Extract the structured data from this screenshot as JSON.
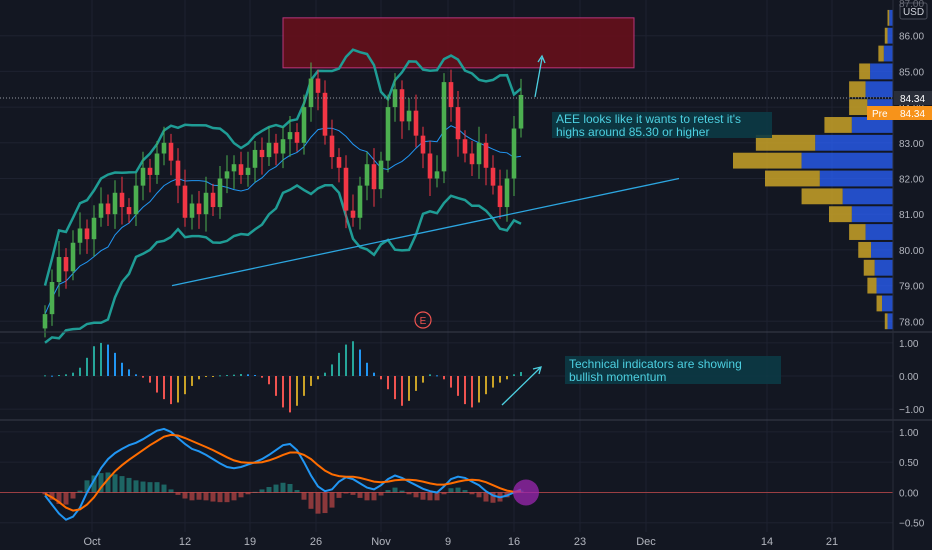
{
  "colors": {
    "background": "#131722",
    "grid": "#1e2230",
    "axis_text": "#b2b5be",
    "bull": "#26a69a",
    "bull_candle": "#4caf50",
    "bear": "#ef5350",
    "bear_candle": "#f23645",
    "band": "#1f9c95",
    "basis": "#2196f3",
    "trendline": "#2ca6e0",
    "zone_fill": "#6b0f1a",
    "zone_border": "#d83a8a",
    "vp_up": "#2962ff",
    "vp_down": "#c9a227",
    "macd_line": "#2196f3",
    "signal_line": "#ff6d00",
    "annotation_bg": "#0c3a45",
    "annotation_text": "#4dd0e1",
    "pre_badge": "#f7931a",
    "last_badge": "#2a2e39"
  },
  "symbol": {
    "currency": "USD",
    "last_price": "84.34",
    "pre_label": "Pre",
    "pre_price": "84.34",
    "top_tick": "87.00"
  },
  "annotations": {
    "price_note_line1": "AEE looks like it wants to retest it's",
    "price_note_line2": "highs around 85.30 or higher",
    "momentum_note_line1": "Technical indicators are showing",
    "momentum_note_line2": "bullish momentum",
    "earnings_marker": "E"
  },
  "chart_data": [
    {
      "type": "candlestick",
      "title": "",
      "x_labels": [
        "Oct",
        "12",
        "19",
        "26",
        "Nov",
        "9",
        "16",
        "23",
        "Dec",
        "14",
        "21"
      ],
      "y_ticks": [
        "86.00",
        "85.00",
        "84.00",
        "83.00",
        "82.00",
        "81.00",
        "80.00",
        "79.00",
        "78.00"
      ],
      "ylim": [
        77.7,
        87.0
      ],
      "resistance_zone": [
        85.1,
        86.5
      ],
      "support_trendline": {
        "start": 79.0,
        "end": 82.0
      },
      "closes": [
        78.2,
        79.1,
        79.8,
        79.4,
        80.2,
        80.6,
        80.3,
        80.9,
        81.3,
        81.0,
        81.6,
        81.2,
        81.0,
        81.8,
        82.3,
        82.1,
        82.7,
        83.0,
        82.5,
        81.8,
        80.9,
        81.3,
        81.0,
        81.6,
        81.2,
        82.0,
        82.2,
        82.4,
        82.1,
        82.3,
        82.8,
        82.6,
        83.0,
        82.7,
        83.1,
        83.3,
        83.0,
        84.0,
        84.8,
        84.4,
        83.2,
        82.6,
        82.3,
        81.1,
        80.9,
        81.8,
        82.4,
        81.7,
        82.5,
        84.0,
        84.5,
        83.6,
        83.9,
        83.2,
        82.7,
        82.0,
        82.2,
        84.7,
        84.0,
        83.1,
        82.7,
        82.4,
        83.0,
        82.3,
        81.8,
        81.2,
        82.0,
        83.4,
        84.34
      ],
      "volume_profile": [
        {
          "price": 86.5,
          "up": 4,
          "down": 2
        },
        {
          "price": 86.0,
          "up": 6,
          "down": 3
        },
        {
          "price": 85.5,
          "up": 10,
          "down": 6
        },
        {
          "price": 85.0,
          "up": 25,
          "down": 12
        },
        {
          "price": 84.5,
          "up": 30,
          "down": 18
        },
        {
          "price": 84.0,
          "up": 28,
          "down": 20
        },
        {
          "price": 83.5,
          "up": 45,
          "down": 30
        },
        {
          "price": 83.0,
          "up": 85,
          "down": 65
        },
        {
          "price": 82.5,
          "up": 100,
          "down": 75
        },
        {
          "price": 82.0,
          "up": 80,
          "down": 60
        },
        {
          "price": 81.5,
          "up": 55,
          "down": 45
        },
        {
          "price": 81.0,
          "up": 45,
          "down": 25
        },
        {
          "price": 80.5,
          "up": 30,
          "down": 18
        },
        {
          "price": 80.0,
          "up": 24,
          "down": 14
        },
        {
          "price": 79.5,
          "up": 20,
          "down": 12
        },
        {
          "price": 79.0,
          "up": 18,
          "down": 10
        },
        {
          "price": 78.5,
          "up": 12,
          "down": 6
        },
        {
          "price": 78.0,
          "up": 6,
          "down": 3
        }
      ]
    },
    {
      "type": "bar",
      "title": "",
      "y_ticks": [
        "1.00",
        "0.00",
        "−1.00"
      ],
      "ylim": [
        -1.3,
        1.3
      ],
      "values": [
        0.02,
        0.01,
        0.03,
        0.05,
        0.1,
        0.25,
        0.55,
        0.9,
        1.0,
        0.95,
        0.7,
        0.4,
        0.2,
        0.05,
        -0.05,
        -0.2,
        -0.5,
        -0.7,
        -0.85,
        -0.8,
        -0.55,
        -0.3,
        -0.1,
        -0.03,
        -0.02,
        0.02,
        0.03,
        0.04,
        0.06,
        0.05,
        0.03,
        -0.05,
        -0.25,
        -0.6,
        -0.95,
        -1.1,
        -0.9,
        -0.6,
        -0.3,
        -0.1,
        0.1,
        0.35,
        0.7,
        0.95,
        1.05,
        0.8,
        0.4,
        0.1,
        -0.1,
        -0.4,
        -0.7,
        -0.9,
        -0.75,
        -0.45,
        -0.2,
        0.05,
        0.02,
        -0.1,
        -0.35,
        -0.6,
        -0.85,
        -0.95,
        -0.8,
        -0.55,
        -0.35,
        -0.2,
        -0.1,
        0.05,
        0.12
      ]
    },
    {
      "type": "line",
      "title": "",
      "y_ticks": [
        "1.00",
        "0.50",
        "0.00",
        "−0.50"
      ],
      "ylim": [
        -0.62,
        1.18
      ],
      "series": [
        {
          "values": [
            -0.05,
            -0.2,
            -0.35,
            -0.45,
            -0.4,
            -0.25,
            0.0,
            0.2,
            0.4,
            0.55,
            0.65,
            0.72,
            0.78,
            0.82,
            0.88,
            0.95,
            1.02,
            1.05,
            1.0,
            0.9,
            0.8,
            0.72,
            0.68,
            0.62,
            0.55,
            0.48,
            0.42,
            0.4,
            0.42,
            0.46,
            0.5,
            0.55,
            0.62,
            0.7,
            0.78,
            0.8,
            0.7,
            0.5,
            0.28,
            0.1,
            0.02,
            0.05,
            0.18,
            0.25,
            0.22,
            0.15,
            0.08,
            0.05,
            0.12,
            0.22,
            0.28,
            0.24,
            0.18,
            0.12,
            0.06,
            0.02,
            0.0,
            0.1,
            0.22,
            0.26,
            0.24,
            0.18,
            0.12,
            0.02,
            -0.05,
            -0.08,
            -0.05,
            0.0,
            0.05
          ]
        },
        {
          "values": [
            -0.02,
            -0.08,
            -0.16,
            -0.25,
            -0.3,
            -0.28,
            -0.2,
            -0.08,
            0.08,
            0.22,
            0.35,
            0.45,
            0.54,
            0.62,
            0.7,
            0.78,
            0.85,
            0.92,
            0.95,
            0.94,
            0.9,
            0.85,
            0.8,
            0.75,
            0.7,
            0.64,
            0.58,
            0.53,
            0.5,
            0.49,
            0.49,
            0.5,
            0.53,
            0.57,
            0.62,
            0.66,
            0.66,
            0.62,
            0.55,
            0.45,
            0.36,
            0.3,
            0.27,
            0.26,
            0.26,
            0.24,
            0.21,
            0.18,
            0.17,
            0.18,
            0.2,
            0.21,
            0.21,
            0.2,
            0.18,
            0.15,
            0.13,
            0.13,
            0.15,
            0.18,
            0.2,
            0.21,
            0.2,
            0.17,
            0.12,
            0.07,
            0.03,
            0.01,
            0.02
          ]
        }
      ]
    }
  ]
}
